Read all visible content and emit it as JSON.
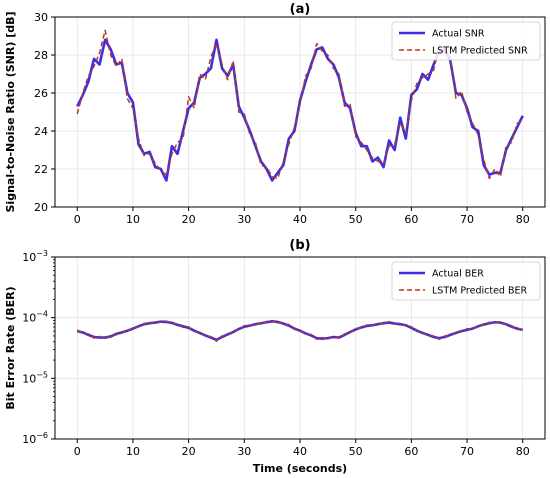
{
  "chart_data": [
    {
      "type": "line",
      "title": "(a)",
      "xlabel": "",
      "ylabel": "Signal-to-Noise Ratio (SNR) [dB]",
      "xlim": [
        -4,
        84
      ],
      "ylim": [
        20,
        30
      ],
      "xticks": [
        0,
        10,
        20,
        30,
        40,
        50,
        60,
        70,
        80
      ],
      "yticks": [
        20,
        22,
        24,
        26,
        28,
        30
      ],
      "xtick_labels": [
        "0",
        "10",
        "20",
        "30",
        "40",
        "50",
        "60",
        "70",
        "80"
      ],
      "ytick_labels": [
        "20",
        "22",
        "24",
        "26",
        "28",
        "30"
      ],
      "grid": true,
      "legend_position": "top-right",
      "series": [
        {
          "name": "Actual SNR",
          "style": "solid",
          "color": "#3b2ee6",
          "x": [
            0,
            1,
            2,
            3,
            4,
            5,
            6,
            7,
            8,
            9,
            10,
            11,
            12,
            13,
            14,
            15,
            16,
            17,
            18,
            19,
            20,
            21,
            22,
            23,
            24,
            25,
            26,
            27,
            28,
            29,
            30,
            31,
            32,
            33,
            34,
            35,
            36,
            37,
            38,
            39,
            40,
            41,
            42,
            43,
            44,
            45,
            46,
            47,
            48,
            49,
            50,
            51,
            52,
            53,
            54,
            55,
            56,
            57,
            58,
            59,
            60,
            61,
            62,
            63,
            64,
            65,
            66,
            67,
            68,
            69,
            70,
            71,
            72,
            73,
            74,
            75,
            76,
            77,
            78,
            79,
            80
          ],
          "values": [
            25.3,
            25.9,
            26.6,
            27.8,
            27.5,
            28.8,
            28.3,
            27.5,
            27.6,
            26.0,
            25.5,
            23.3,
            22.8,
            22.9,
            22.1,
            22.0,
            21.4,
            23.2,
            22.8,
            24.0,
            25.2,
            25.5,
            26.8,
            27.0,
            27.3,
            28.8,
            27.3,
            26.9,
            27.5,
            25.3,
            24.7,
            24.0,
            23.2,
            22.4,
            22.0,
            21.4,
            21.8,
            22.2,
            23.6,
            24.0,
            25.6,
            26.6,
            27.5,
            28.3,
            28.4,
            27.8,
            27.5,
            26.8,
            25.5,
            25.2,
            23.9,
            23.2,
            23.2,
            22.4,
            22.6,
            22.1,
            23.5,
            23.0,
            24.7,
            23.6,
            25.9,
            26.2,
            27.0,
            26.7,
            27.5,
            28.2,
            28.3,
            27.7,
            26.0,
            25.9,
            25.2,
            24.2,
            24.0,
            22.2,
            21.7,
            21.8,
            21.8,
            23.0,
            23.6,
            24.2,
            24.8
          ]
        },
        {
          "name": "LSTM Predicted SNR",
          "style": "dashed",
          "color": "#b23a1e",
          "x": [
            0,
            1,
            2,
            3,
            4,
            5,
            6,
            7,
            8,
            9,
            10,
            11,
            12,
            13,
            14,
            15,
            16,
            17,
            18,
            19,
            20,
            21,
            22,
            23,
            24,
            25,
            26,
            27,
            28,
            29,
            30,
            31,
            32,
            33,
            34,
            35,
            36,
            37,
            38,
            39,
            40,
            41,
            42,
            43,
            44,
            45,
            46,
            47,
            48,
            49,
            50,
            51,
            52,
            53,
            54,
            55,
            56,
            57,
            58,
            59,
            60,
            61,
            62,
            63,
            64,
            65,
            66,
            67,
            68,
            69,
            70,
            71,
            72,
            73,
            74,
            75,
            76,
            77,
            78,
            79,
            80
          ],
          "values": [
            24.9,
            26.0,
            26.9,
            27.4,
            28.1,
            29.3,
            28.0,
            27.4,
            27.8,
            25.7,
            25.2,
            23.6,
            22.7,
            22.8,
            22.3,
            21.9,
            21.7,
            22.8,
            23.4,
            23.6,
            25.8,
            25.2,
            27.0,
            26.7,
            27.9,
            28.6,
            27.5,
            26.7,
            27.7,
            25.0,
            24.9,
            23.8,
            23.4,
            22.2,
            22.1,
            21.6,
            21.5,
            22.4,
            23.3,
            24.2,
            25.4,
            26.9,
            27.3,
            28.6,
            28.2,
            28.0,
            27.3,
            27.0,
            25.3,
            25.4,
            23.7,
            23.4,
            23.0,
            22.6,
            22.4,
            22.3,
            23.2,
            23.3,
            24.4,
            23.9,
            25.6,
            26.5,
            26.8,
            27.0,
            27.2,
            28.5,
            28.1,
            27.9,
            25.7,
            26.1,
            25.0,
            24.4,
            23.8,
            22.5,
            21.5,
            22.0,
            21.6,
            23.2,
            23.4,
            24.4,
            24.6
          ]
        }
      ]
    },
    {
      "type": "line",
      "title": "(b)",
      "xlabel": "Time (seconds)",
      "ylabel": "Bit Error Rate (BER)",
      "xlim": [
        -4,
        84
      ],
      "ylim": [
        1e-06,
        0.001
      ],
      "yscale": "log",
      "xticks": [
        0,
        10,
        20,
        30,
        40,
        50,
        60,
        70,
        80
      ],
      "yticks": [
        1e-06,
        1e-05,
        0.0001,
        0.001
      ],
      "xtick_labels": [
        "0",
        "10",
        "20",
        "30",
        "40",
        "50",
        "60",
        "70",
        "80"
      ],
      "ytick_labels": [
        [
          "10",
          "−6"
        ],
        [
          "10",
          "−5"
        ],
        [
          "10",
          "−4"
        ],
        [
          "10",
          "−3"
        ]
      ],
      "grid": true,
      "legend_position": "top-right",
      "series": [
        {
          "name": "Actual BER",
          "style": "solid",
          "color": "#3b2ee6",
          "x": [
            0,
            1,
            2,
            3,
            4,
            5,
            6,
            7,
            8,
            9,
            10,
            11,
            12,
            13,
            14,
            15,
            16,
            17,
            18,
            19,
            20,
            21,
            22,
            23,
            24,
            25,
            26,
            27,
            28,
            29,
            30,
            31,
            32,
            33,
            34,
            35,
            36,
            37,
            38,
            39,
            40,
            41,
            42,
            43,
            44,
            45,
            46,
            47,
            48,
            49,
            50,
            51,
            52,
            53,
            54,
            55,
            56,
            57,
            58,
            59,
            60,
            61,
            62,
            63,
            64,
            65,
            66,
            67,
            68,
            69,
            70,
            71,
            72,
            73,
            74,
            75,
            76,
            77,
            78,
            79,
            80
          ],
          "values": [
            6e-05,
            5.7e-05,
            5.2e-05,
            4.8e-05,
            4.7e-05,
            4.7e-05,
            4.9e-05,
            5.4e-05,
            5.7e-05,
            6.1e-05,
            6.6e-05,
            7.2e-05,
            7.8e-05,
            8.1e-05,
            8.3e-05,
            8.6e-05,
            8.5e-05,
            8.2e-05,
            7.6e-05,
            7.2e-05,
            6.8e-05,
            6.1e-05,
            5.6e-05,
            5.1e-05,
            4.7e-05,
            4.3e-05,
            4.8e-05,
            5.3e-05,
            5.8e-05,
            6.5e-05,
            7.1e-05,
            7.4e-05,
            7.8e-05,
            8.1e-05,
            8.4e-05,
            8.7e-05,
            8.5e-05,
            8e-05,
            7.4e-05,
            6.6e-05,
            6.1e-05,
            5.5e-05,
            5.1e-05,
            4.6e-05,
            4.5e-05,
            4.6e-05,
            4.8e-05,
            4.7e-05,
            5.2e-05,
            5.8e-05,
            6.4e-05,
            6.9e-05,
            7.3e-05,
            7.5e-05,
            7.8e-05,
            8.1e-05,
            8.3e-05,
            8e-05,
            7.8e-05,
            7.5e-05,
            6.8e-05,
            6.1e-05,
            5.6e-05,
            5.2e-05,
            4.8e-05,
            4.6e-05,
            4.8e-05,
            5.2e-05,
            5.6e-05,
            6e-05,
            6.3e-05,
            6.6e-05,
            7.2e-05,
            7.7e-05,
            8.1e-05,
            8.4e-05,
            8.3e-05,
            7.8e-05,
            7.1e-05,
            6.6e-05,
            6.3e-05
          ]
        },
        {
          "name": "LSTM Predicted BER",
          "style": "dashed",
          "color": "#b23a1e",
          "x": [
            0,
            1,
            2,
            3,
            4,
            5,
            6,
            7,
            8,
            9,
            10,
            11,
            12,
            13,
            14,
            15,
            16,
            17,
            18,
            19,
            20,
            21,
            22,
            23,
            24,
            25,
            26,
            27,
            28,
            29,
            30,
            31,
            32,
            33,
            34,
            35,
            36,
            37,
            38,
            39,
            40,
            41,
            42,
            43,
            44,
            45,
            46,
            47,
            48,
            49,
            50,
            51,
            52,
            53,
            54,
            55,
            56,
            57,
            58,
            59,
            60,
            61,
            62,
            63,
            64,
            65,
            66,
            67,
            68,
            69,
            70,
            71,
            72,
            73,
            74,
            75,
            76,
            77,
            78,
            79,
            80
          ],
          "values": [
            6.3e-05,
            5.5e-05,
            5.4e-05,
            4.6e-05,
            4.9e-05,
            4.5e-05,
            5.1e-05,
            5.2e-05,
            5.9e-05,
            5.9e-05,
            6.9e-05,
            7e-05,
            8.1e-05,
            7.9e-05,
            8.6e-05,
            8.4e-05,
            8.8e-05,
            7.9e-05,
            7.9e-05,
            6.9e-05,
            7.1e-05,
            5.9e-05,
            5.8e-05,
            4.9e-05,
            4.9e-05,
            4.1e-05,
            5e-05,
            5.1e-05,
            6.1e-05,
            6.3e-05,
            7.4e-05,
            7.2e-05,
            8.1e-05,
            7.9e-05,
            8.7e-05,
            8.5e-05,
            8.8e-05,
            7.8e-05,
            7.7e-05,
            6.4e-05,
            6.3e-05,
            5.3e-05,
            5.3e-05,
            4.4e-05,
            4.7e-05,
            4.4e-05,
            5e-05,
            4.6e-05,
            5.4e-05,
            5.6e-05,
            6.7e-05,
            6.7e-05,
            7.6e-05,
            7.3e-05,
            8.1e-05,
            7.9e-05,
            8.6e-05,
            7.8e-05,
            8.1e-05,
            7.3e-05,
            7.1e-05,
            5.9e-05,
            5.8e-05,
            5e-05,
            5e-05,
            4.4e-05,
            5e-05,
            5e-05,
            5.8e-05,
            5.8e-05,
            6.6e-05,
            6.4e-05,
            7.5e-05,
            7.5e-05,
            8.4e-05,
            8.2e-05,
            8.6e-05,
            7.6e-05,
            7.4e-05,
            6.4e-05,
            6.5e-05
          ]
        }
      ]
    }
  ]
}
